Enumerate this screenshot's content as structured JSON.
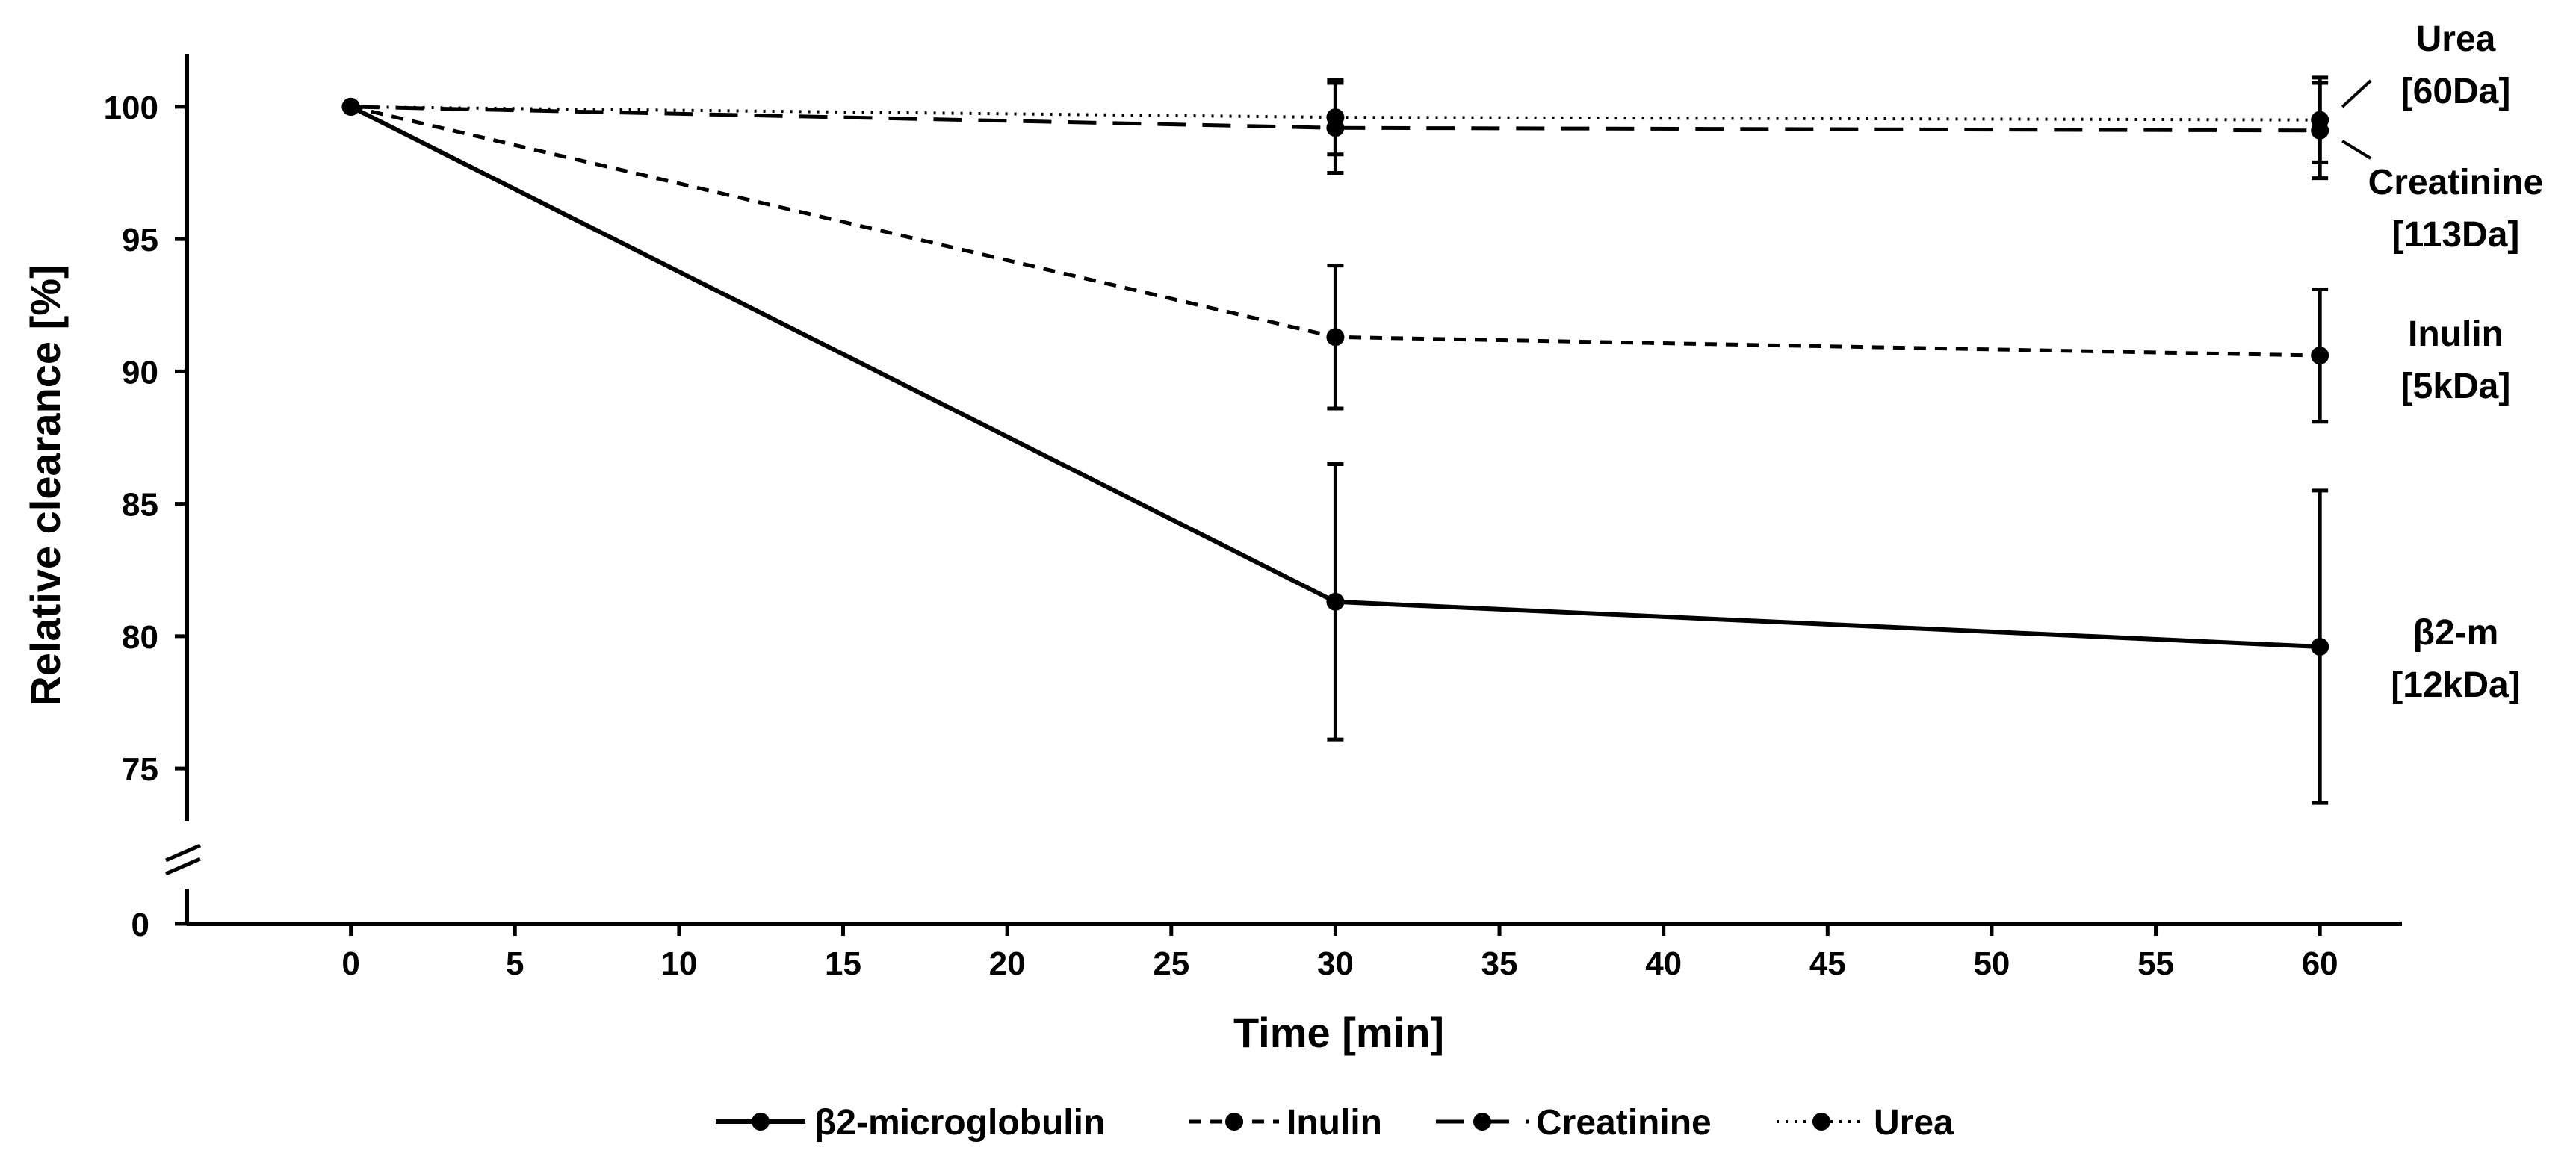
{
  "chart_data": {
    "type": "line",
    "title": "",
    "xlabel": "Time [min]",
    "ylabel": "Relative clearance [%]",
    "x": [
      0,
      30,
      60
    ],
    "xticks": [
      0,
      5,
      10,
      15,
      20,
      25,
      30,
      35,
      40,
      45,
      50,
      55,
      60
    ],
    "xlim": [
      -5,
      62.5
    ],
    "ylim": [
      73,
      102
    ],
    "yticks": [
      75,
      80,
      85,
      90,
      95,
      100
    ],
    "y_break_tick": 0,
    "y_break_symbol": "//",
    "series": [
      {
        "name": "β2-microglobulin",
        "style": "solid",
        "values": [
          100,
          81.3,
          79.6
        ],
        "errors": [
          0,
          5.2,
          5.9
        ],
        "label_lines": [
          "β2-m",
          "[12kDa]"
        ]
      },
      {
        "name": "Inulin",
        "style": "dashed",
        "values": [
          100,
          91.3,
          90.6
        ],
        "errors": [
          0,
          2.7,
          2.5
        ],
        "label_lines": [
          "Inulin",
          "[5kDa]"
        ]
      },
      {
        "name": "Creatinine",
        "style": "longdash",
        "values": [
          100,
          99.2,
          99.1
        ],
        "errors": [
          0,
          1.7,
          1.8
        ],
        "label_lines": [
          "Creatinine",
          "[113Da]"
        ]
      },
      {
        "name": "Urea",
        "style": "dotted",
        "values": [
          100,
          99.6,
          99.5
        ],
        "errors": [
          0,
          1.4,
          1.6
        ],
        "label_lines": [
          "Urea",
          "[60Da]"
        ]
      }
    ],
    "legend_position": "bottom",
    "grid": false,
    "colors": {
      "line": "#000000",
      "background": "#ffffff"
    }
  }
}
